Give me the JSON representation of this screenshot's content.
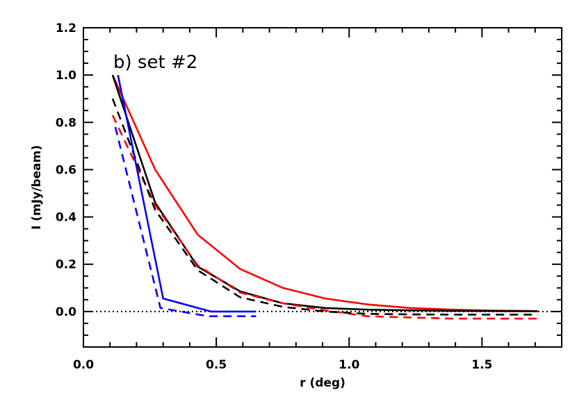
{
  "chart_data": {
    "type": "line",
    "title": "b) set #2",
    "xlabel": "r (deg)",
    "ylabel": "I (mJy/beam)",
    "xlim": [
      0.0,
      1.8
    ],
    "ylim": [
      -0.15,
      1.2
    ],
    "x_ticks": [
      0.0,
      0.5,
      1.0,
      1.5
    ],
    "x_tick_labels": [
      "0.0",
      "0.5",
      "1.0",
      "1.5"
    ],
    "x_minor_step": 0.1,
    "y_ticks": [
      0.0,
      0.2,
      0.4,
      0.6,
      0.8,
      1.0,
      1.2
    ],
    "y_tick_labels": [
      "0.0",
      "0.2",
      "0.4",
      "0.6",
      "0.8",
      "1.0",
      "1.2"
    ],
    "y_minor_step": 0.05,
    "grid": false,
    "legend": "none",
    "reference_line": {
      "y": 0.0,
      "style": "dotted",
      "color": "#000000"
    },
    "series": [
      {
        "color": "#ff0000",
        "dash": "solid",
        "x": [
          0.11,
          0.27,
          0.43,
          0.59,
          0.75,
          0.91,
          1.07,
          1.23,
          1.39,
          1.55,
          1.71
        ],
        "y": [
          1.0,
          0.6,
          0.325,
          0.18,
          0.1,
          0.055,
          0.03,
          0.015,
          0.008,
          0.004,
          0.002
        ]
      },
      {
        "color": "#000000",
        "dash": "solid",
        "x": [
          0.11,
          0.27,
          0.43,
          0.59,
          0.75,
          0.91,
          1.07,
          1.23,
          1.39,
          1.55,
          1.71
        ],
        "y": [
          1.0,
          0.46,
          0.19,
          0.085,
          0.035,
          0.015,
          0.008,
          0.005,
          0.003,
          0.002,
          0.001
        ]
      },
      {
        "color": "#ff0000",
        "dash": "dashed",
        "x": [
          0.11,
          0.27,
          0.43,
          0.59,
          0.75,
          0.91,
          1.07,
          1.23,
          1.39,
          1.55,
          1.71
        ],
        "y": [
          0.83,
          0.45,
          0.195,
          0.08,
          0.035,
          0.005,
          -0.02,
          -0.025,
          -0.03,
          -0.03,
          -0.03
        ]
      },
      {
        "color": "#000000",
        "dash": "dashed",
        "x": [
          0.11,
          0.27,
          0.43,
          0.59,
          0.75,
          0.91,
          1.07,
          1.23,
          1.39,
          1.55,
          1.71
        ],
        "y": [
          0.9,
          0.43,
          0.175,
          0.06,
          0.02,
          0.0,
          -0.01,
          -0.012,
          -0.013,
          -0.013,
          -0.013
        ]
      },
      {
        "color": "#0000ff",
        "dash": "solid",
        "x": [
          0.13,
          0.3,
          0.48,
          0.65
        ],
        "y": [
          1.0,
          0.055,
          0.0,
          0.0
        ]
      },
      {
        "color": "#0000ff",
        "dash": "dashed",
        "x": [
          0.12,
          0.29,
          0.47,
          0.65
        ],
        "y": [
          0.78,
          0.015,
          -0.02,
          -0.02
        ]
      }
    ]
  }
}
